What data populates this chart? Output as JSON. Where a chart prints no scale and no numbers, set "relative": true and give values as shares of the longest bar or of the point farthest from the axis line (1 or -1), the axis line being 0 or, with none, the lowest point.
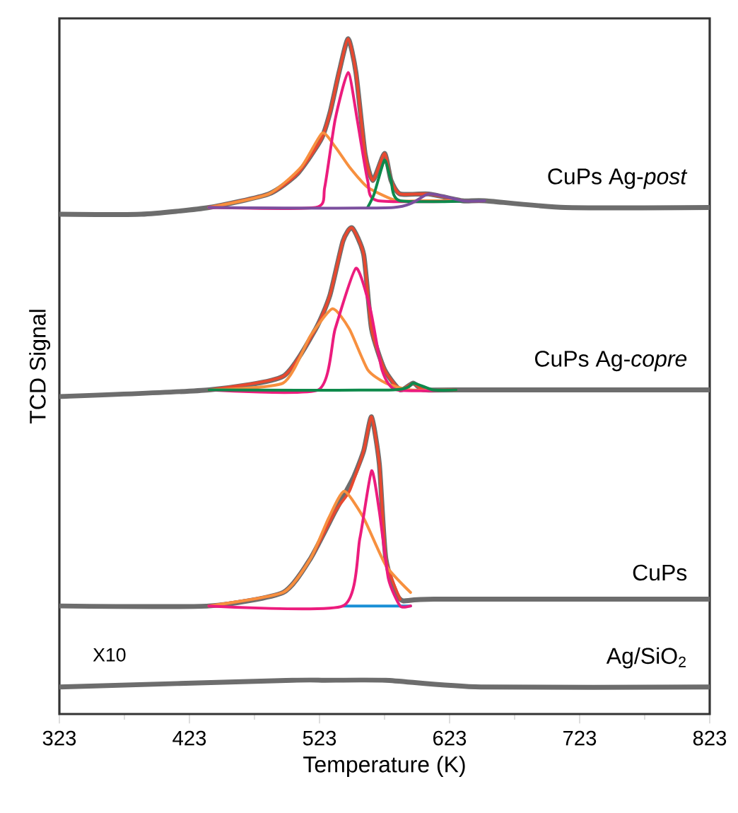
{
  "chart_data": {
    "type": "line",
    "relative": true,
    "xlabel": "Temperature (K)",
    "ylabel": "TCD Signal",
    "tick_labels": "x",
    "xlim": [
      323,
      823
    ],
    "xticks": [
      323,
      423,
      523,
      623,
      723,
      823
    ],
    "annotations": [
      "X10"
    ],
    "series": [
      {
        "name": "CuPs Ag-*post*",
        "color": "#6d6d6d",
        "x": [
          323,
          386,
          438,
          484,
          506,
          524,
          531,
          538,
          545,
          551,
          558,
          564,
          573,
          578,
          585,
          607,
          633,
          650,
          712,
          823
        ],
        "values": [
          0.74,
          0.74,
          0.75,
          0.77,
          0.8,
          0.85,
          0.89,
          0.95,
          1.0,
          0.95,
          0.83,
          0.79,
          0.83,
          0.79,
          0.77,
          0.77,
          0.76,
          0.76,
          0.75,
          0.75
        ]
      },
      {
        "color": "#e8482f",
        "x": [
          438,
          484,
          506,
          524,
          531,
          538,
          545,
          551,
          558,
          564,
          573,
          578,
          585,
          607,
          633,
          650
        ],
        "values": [
          0.75,
          0.77,
          0.8,
          0.85,
          0.89,
          0.95,
          1.0,
          0.95,
          0.83,
          0.79,
          0.83,
          0.79,
          0.77,
          0.77,
          0.76,
          0.76
        ]
      },
      {
        "color": "#f7903f",
        "x": [
          438,
          484,
          509,
          525,
          535,
          546,
          560,
          582,
          603,
          650
        ],
        "values": [
          0.75,
          0.77,
          0.81,
          0.86,
          0.84,
          0.81,
          0.78,
          0.76,
          0.76,
          0.76
        ]
      },
      {
        "color": "#ec1c7d",
        "x": [
          438,
          520,
          527,
          535,
          545,
          552,
          560,
          568,
          650
        ],
        "values": [
          0.75,
          0.75,
          0.78,
          0.88,
          0.95,
          0.88,
          0.79,
          0.76,
          0.76
        ]
      },
      {
        "color": "#0e8a4b",
        "x": [
          560,
          565,
          573,
          578,
          585,
          650
        ],
        "values": [
          0.75,
          0.77,
          0.82,
          0.79,
          0.76,
          0.76
        ]
      },
      {
        "color": "#7b4f9e",
        "x": [
          438,
          580,
          607,
          633,
          650
        ],
        "values": [
          0.75,
          0.75,
          0.77,
          0.76,
          0.76
        ]
      },
      {
        "name": "CuPs Ag-*copre*",
        "color": "#6d6d6d",
        "x": [
          323,
          438,
          495,
          520,
          531,
          541,
          548,
          557,
          563,
          573,
          585,
          595,
          603,
          628,
          823
        ],
        "values": [
          0.47,
          0.48,
          0.5,
          0.57,
          0.62,
          0.7,
          0.72,
          0.68,
          0.57,
          0.51,
          0.48,
          0.49,
          0.48,
          0.48,
          0.48
        ]
      },
      {
        "color": "#e8482f",
        "x": [
          438,
          495,
          520,
          531,
          541,
          548,
          557,
          563,
          573,
          585,
          595,
          603,
          628
        ],
        "values": [
          0.48,
          0.5,
          0.57,
          0.62,
          0.7,
          0.72,
          0.68,
          0.57,
          0.51,
          0.48,
          0.49,
          0.48,
          0.48
        ]
      },
      {
        "color": "#f7903f",
        "x": [
          438,
          495,
          516,
          533,
          546,
          560,
          574,
          593,
          628
        ],
        "values": [
          0.48,
          0.49,
          0.56,
          0.6,
          0.57,
          0.51,
          0.49,
          0.48,
          0.48
        ]
      },
      {
        "color": "#ec1c7d",
        "x": [
          438,
          522,
          535,
          551,
          562,
          571,
          582,
          628
        ],
        "values": [
          0.48,
          0.48,
          0.57,
          0.66,
          0.6,
          0.51,
          0.48,
          0.48
        ]
      },
      {
        "color": "#0e8a4b",
        "x": [
          438,
          580,
          595,
          610,
          628
        ],
        "values": [
          0.48,
          0.48,
          0.49,
          0.48,
          0.48
        ]
      },
      {
        "name": "CuPs",
        "color": "#6d6d6d",
        "x": [
          323,
          438,
          495,
          516,
          535,
          549,
          557,
          563,
          569,
          574,
          585,
          611,
          823
        ],
        "values": [
          0.16,
          0.16,
          0.18,
          0.23,
          0.3,
          0.35,
          0.39,
          0.44,
          0.37,
          0.23,
          0.17,
          0.17,
          0.17
        ]
      },
      {
        "color": "#e8482f",
        "x": [
          438,
          495,
          516,
          535,
          546,
          557,
          563,
          569,
          574,
          585
        ],
        "values": [
          0.16,
          0.18,
          0.23,
          0.3,
          0.33,
          0.39,
          0.44,
          0.37,
          0.23,
          0.17
        ]
      },
      {
        "color": "#f7903f",
        "x": [
          438,
          495,
          516,
          530,
          542,
          557,
          574,
          593
        ],
        "values": [
          0.16,
          0.18,
          0.23,
          0.29,
          0.33,
          0.29,
          0.22,
          0.18
        ]
      },
      {
        "color": "#1a8fd6",
        "x": [
          541,
          593
        ],
        "values": [
          0.16,
          0.16
        ]
      },
      {
        "color": "#ec1c7d",
        "x": [
          438,
          541,
          554,
          563,
          569,
          576,
          585,
          593
        ],
        "values": [
          0.16,
          0.16,
          0.26,
          0.36,
          0.3,
          0.2,
          0.16,
          0.16
        ]
      },
      {
        "name": "Ag/SiO$_{2}$",
        "color": "#6d6d6d",
        "x": [
          323,
          502,
          527,
          574,
          647,
          823
        ],
        "values": [
          0.04,
          0.05,
          0.05,
          0.05,
          0.04,
          0.04
        ]
      }
    ]
  }
}
